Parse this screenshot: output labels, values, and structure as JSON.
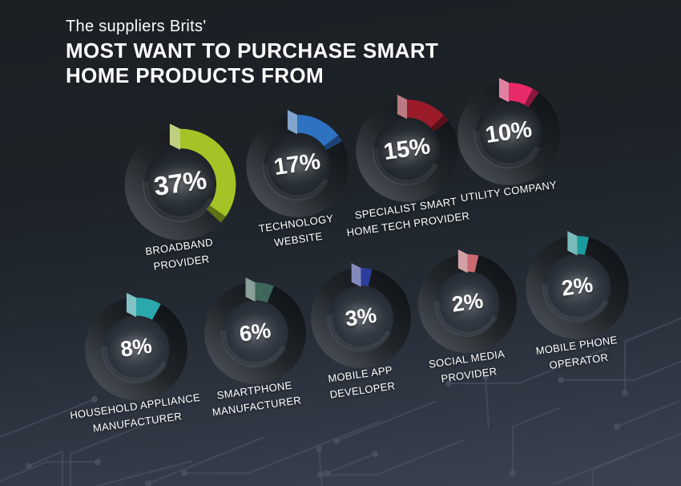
{
  "title": {
    "pre": "The suppliers Brits'",
    "line1": "MOST WANT TO PURCHASE SMART",
    "line2": "HOME PRODUCTS FROM"
  },
  "colors": {
    "background_top": "#1a2024",
    "background_bottom": "#3c4251",
    "circuit_line": "#4d5566",
    "text": "#ffffff"
  },
  "chart_data": {
    "type": "pie",
    "title": "The suppliers Brits' MOST WANT TO PURCHASE SMART HOME PRODUCTS FROM",
    "unit": "%",
    "legend_position": "below-each-donut",
    "series": [
      {
        "label": "BROADBAND PROVIDER",
        "label_lines": [
          "BROADBAND",
          "PROVIDER"
        ],
        "value": 37,
        "display": "37%",
        "color": "#a4c326"
      },
      {
        "label": "TECHNOLOGY WEBSITE",
        "label_lines": [
          "TECHNOLOGY",
          "WEBSITE"
        ],
        "value": 17,
        "display": "17%",
        "color": "#2e72c2"
      },
      {
        "label": "SPECIALIST SMART HOME TECH PROVIDER",
        "label_lines": [
          "SPECIALIST SMART",
          "HOME TECH PROVIDER"
        ],
        "value": 15,
        "display": "15%",
        "color": "#9c1b2b"
      },
      {
        "label": "UTILITY COMPANY",
        "label_lines": [
          "UTILITY COMPANY"
        ],
        "value": 10,
        "display": "10%",
        "color": "#e92a68"
      },
      {
        "label": "HOUSEHOLD APPLIANCE MANUFACTURER",
        "label_lines": [
          "HOUSEHOLD APPLIANCE",
          "MANUFACTURER"
        ],
        "value": 8,
        "display": "8%",
        "color": "#2aa8ab"
      },
      {
        "label": "SMARTPHONE MANUFACTURER",
        "label_lines": [
          "SMARTPHONE",
          "MANUFACTURER"
        ],
        "value": 6,
        "display": "6%",
        "color": "#3e665b"
      },
      {
        "label": "MOBILE APP DEVELOPER",
        "label_lines": [
          "MOBILE APP",
          "DEVELOPER"
        ],
        "value": 3,
        "display": "3%",
        "color": "#2d3d9e"
      },
      {
        "label": "SOCIAL MEDIA PROVIDER",
        "label_lines": [
          "SOCIAL MEDIA",
          "PROVIDER"
        ],
        "value": 2,
        "display": "2%",
        "color": "#c96a70"
      },
      {
        "label": "MOBILE PHONE OPERATOR",
        "label_lines": [
          "MOBILE PHONE",
          "OPERATOR"
        ],
        "value": 2,
        "display": "2%",
        "color": "#1b9b9d"
      }
    ]
  }
}
